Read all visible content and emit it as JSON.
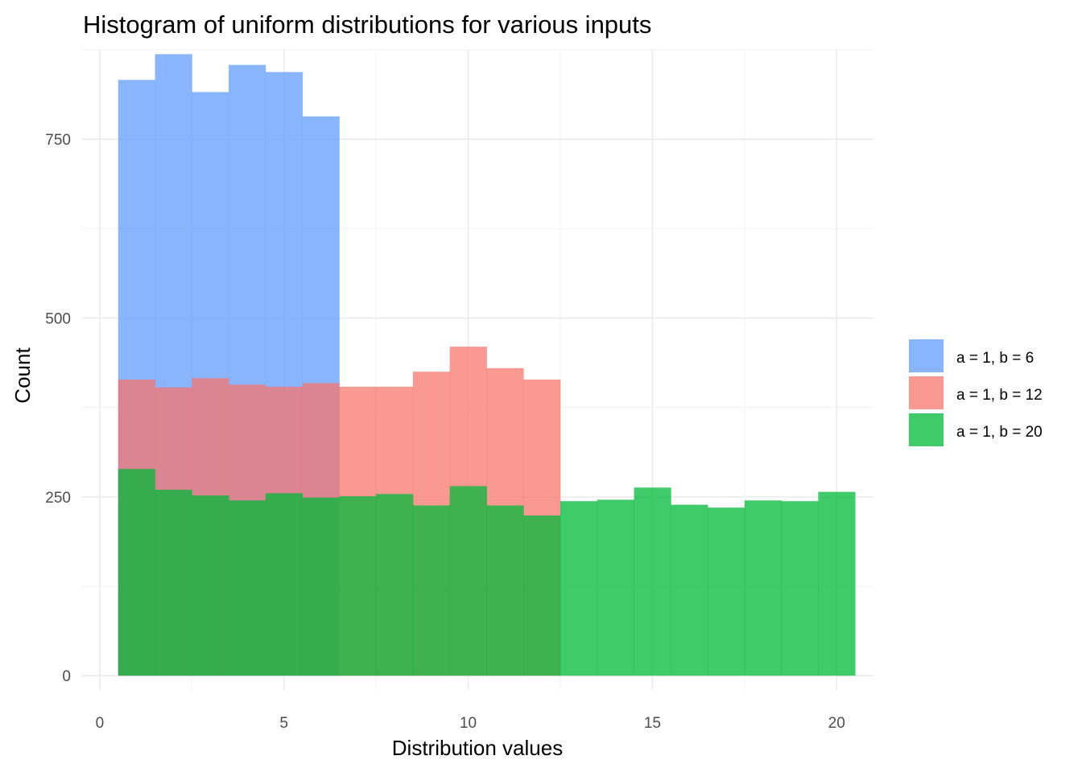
{
  "chart_data": {
    "type": "histogram",
    "title": "Histogram of uniform distributions for various inputs",
    "xlabel": "Distribution values",
    "ylabel": "Count",
    "xlim": [
      -0.5,
      21
    ],
    "ylim": [
      -20,
      875
    ],
    "x_ticks": [
      0,
      5,
      10,
      15,
      20
    ],
    "y_ticks": [
      0,
      250,
      500,
      750
    ],
    "grid": true,
    "legend_position": "right",
    "series": [
      {
        "name": "a = 1, b = 6",
        "color": "#619CFF",
        "bins": [
          1,
          2,
          3,
          4,
          5,
          6
        ],
        "values": [
          833,
          869,
          816,
          854,
          844,
          782
        ]
      },
      {
        "name": "a = 1, b = 12",
        "color": "#F8766D",
        "bins": [
          1,
          2,
          3,
          4,
          5,
          6,
          7,
          8,
          9,
          10,
          11,
          12
        ],
        "values": [
          414,
          403,
          416,
          407,
          404,
          409,
          404,
          404,
          425,
          460,
          430,
          414
        ]
      },
      {
        "name": "a = 1, b = 20",
        "color": "#00BA38",
        "bins": [
          1,
          2,
          3,
          4,
          5,
          6,
          7,
          8,
          9,
          10,
          11,
          12,
          13,
          14,
          15,
          16,
          17,
          18,
          19,
          20
        ],
        "values": [
          289,
          260,
          252,
          245,
          255,
          249,
          251,
          254,
          238,
          265,
          238,
          224,
          244,
          246,
          263,
          239,
          235,
          245,
          244,
          257
        ]
      }
    ]
  }
}
